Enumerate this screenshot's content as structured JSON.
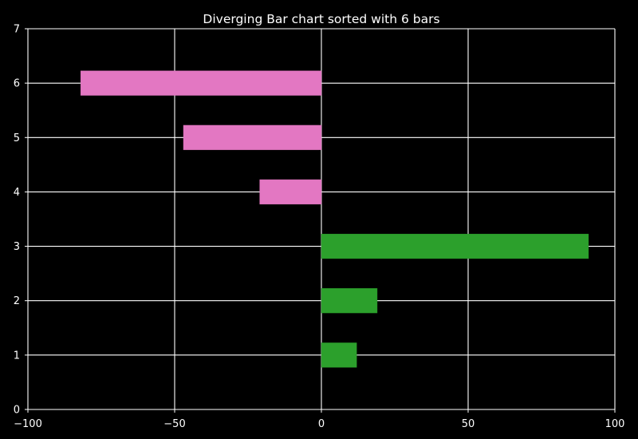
{
  "chart_data": {
    "type": "bar",
    "orientation": "horizontal",
    "title": "Diverging Bar chart sorted with 6 bars",
    "xlabel": "",
    "ylabel": "",
    "xlim": [
      -100,
      100
    ],
    "ylim": [
      0,
      7
    ],
    "x_ticks": [
      -100,
      -50,
      0,
      50,
      100
    ],
    "x_tick_labels": [
      "−100",
      "−50",
      "0",
      "50",
      "100"
    ],
    "y_ticks": [
      0,
      1,
      2,
      3,
      4,
      5,
      6,
      7
    ],
    "y_tick_labels": [
      "0",
      "1",
      "2",
      "3",
      "4",
      "5",
      "6",
      "7"
    ],
    "grid": true,
    "legend": "none",
    "categories": [
      1,
      2,
      3,
      4,
      5,
      6
    ],
    "values": [
      12,
      19,
      91,
      -21,
      -47,
      -82
    ],
    "colors": {
      "positive": "#2ca02c",
      "negative": "#e377c2",
      "background": "#000000",
      "grid": "#ffffff",
      "text": "#ffffff"
    }
  }
}
